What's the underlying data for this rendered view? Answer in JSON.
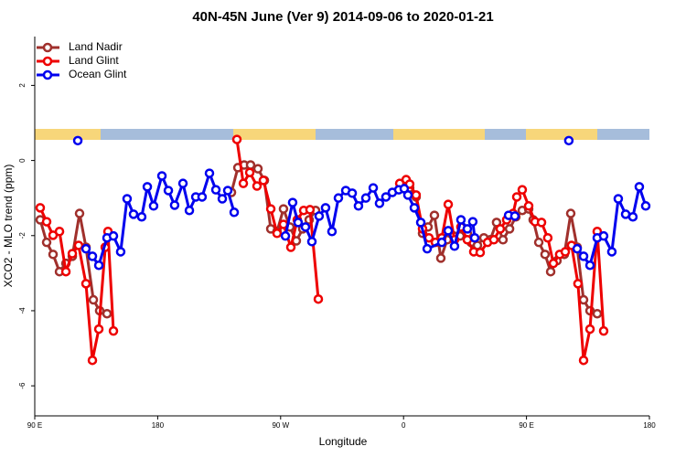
{
  "chart_data": {
    "type": "line",
    "title": "40N-45N June (Ver 9)   2014-09-06 to 2020-01-21",
    "xlabel": "Longitude",
    "ylabel": "XCO2 - MLO trend (ppm)",
    "xlim": [
      90,
      540
    ],
    "ylim": [
      -6.8,
      3.3
    ],
    "xticks": [
      {
        "value": 90,
        "label": "90 E"
      },
      180,
      {
        "value": 270,
        "label": "90 W"
      },
      {
        "value": 360,
        "label": "0"
      },
      {
        "value": 450,
        "label": "90 E"
      },
      {
        "value": 540,
        "label": "180"
      }
    ],
    "yticks": [
      -6,
      -4,
      -2,
      0,
      2
    ],
    "legend": "top-left",
    "series": [
      {
        "name": "Land Nadir",
        "color": "#a0302c",
        "x": [
          94,
          98.7,
          103.4,
          108.1,
          112.8,
          117.5,
          122.8,
          127.5,
          132.9,
          137.5,
          142.9,
          null,
          234,
          238.7,
          243.3,
          248,
          253.4,
          258.1,
          262.8,
          267.4,
          272.1,
          276.8,
          281.5,
          286.2,
          290.9,
          295.6,
          null,
          364.5,
          369.2,
          373.9,
          377.9,
          382.6,
          387.3,
          392,
          396.7,
          401.4,
          406.7,
          409.4,
          414.1,
          418.8,
          423.5,
          428.1,
          432.8,
          437.6,
          442.2,
          446.9,
          451.6,
          454.9,
          459,
          463.6,
          467.7,
          472.3,
          477.7,
          482.4,
          487.1,
          491.8,
          496.5,
          501.8
        ],
        "values": [
          -1.58,
          -2.18,
          -2.5,
          -2.96,
          -2.74,
          -2.55,
          -1.41,
          -2.31,
          -3.71,
          -4.0,
          -4.08,
          null,
          -0.85,
          -0.19,
          -0.12,
          -0.12,
          -0.22,
          -0.53,
          -1.82,
          -1.89,
          -1.29,
          -1.77,
          -2.14,
          -1.82,
          -1.58,
          -1.33,
          null,
          -0.73,
          -0.97,
          -1.94,
          -1.77,
          -1.46,
          -2.6,
          -2.11,
          -2.01,
          -2.01,
          -1.94,
          -2.18,
          -2.26,
          -2.06,
          -2.11,
          -1.65,
          -2.11,
          -1.82,
          -1.5,
          -1.33,
          -1.29,
          -1.58,
          -2.18,
          -2.5,
          -2.96,
          -2.67,
          -2.5,
          -1.41,
          -2.31,
          -3.71,
          -4.0,
          -4.08
        ]
      },
      {
        "name": "Land Glint",
        "color": "#ee0000",
        "x": [
          94,
          98.7,
          103.4,
          108.1,
          112.8,
          117.5,
          122.1,
          127.5,
          132.2,
          136.9,
          141.6,
          143.6,
          147.6,
          null,
          238,
          242.7,
          247.4,
          252.7,
          257.4,
          262.8,
          267.4,
          272.1,
          277.5,
          282.2,
          286.9,
          291.5,
          297.6,
          null,
          357.2,
          361.9,
          364.5,
          369.2,
          373.9,
          378.6,
          383.3,
          388,
          392.7,
          397.3,
          402,
          406.7,
          411.4,
          416.1,
          421.5,
          426.1,
          430.8,
          435.5,
          440.2,
          442.9,
          446.9,
          451.6,
          456.3,
          461,
          465.6,
          469.7,
          474.3,
          478.4,
          483,
          487.7,
          491.8,
          496.5,
          501.8,
          506.5
        ],
        "values": [
          -1.26,
          -1.63,
          -1.99,
          -1.89,
          -2.96,
          -2.48,
          -2.26,
          -3.28,
          -5.32,
          -4.49,
          -2.31,
          -1.89,
          -4.54,
          null,
          0.56,
          -0.61,
          -0.32,
          -0.68,
          -0.53,
          -1.29,
          -1.94,
          -1.7,
          -2.31,
          -1.58,
          -1.33,
          -1.31,
          -3.69,
          null,
          -0.61,
          -0.51,
          -0.63,
          -0.92,
          -1.82,
          -2.06,
          -2.18,
          -2.06,
          -1.17,
          -2.11,
          -1.77,
          -2.11,
          -2.43,
          -2.45,
          -2.18,
          -2.11,
          -1.82,
          -1.58,
          -1.41,
          -0.97,
          -0.78,
          -1.21,
          -1.63,
          -1.65,
          -2.06,
          -2.74,
          -2.5,
          -2.43,
          -2.26,
          -3.28,
          -5.32,
          -4.49,
          -1.89,
          -4.54
        ]
      },
      {
        "name": "Ocean Glint",
        "color": "#0000ee",
        "x": [
          121.5,
          null,
          127.5,
          132.2,
          136.9,
          142.9,
          147.6,
          152.9,
          157.6,
          162.3,
          168.3,
          172.4,
          177,
          183.1,
          187.8,
          192.4,
          198.5,
          203.2,
          207.9,
          212.5,
          217.9,
          222.6,
          227.3,
          231.3,
          236,
          null,
          273.5,
          278.8,
          282.8,
          288.2,
          292.9,
          298.2,
          302.9,
          307.6,
          312.3,
          317.7,
          322.4,
          327,
          332.4,
          337.8,
          342.4,
          347.1,
          351.8,
          356.5,
          360.5,
          363.2,
          367.9,
          372.6,
          377.3,
          388,
          392.7,
          397.3,
          402,
          406.7,
          410.7,
          412.1,
          null,
          436.9,
          441.5,
          null,
          481,
          null,
          487.1,
          491.8,
          496.5,
          501.8,
          506.5,
          512.5,
          517.2,
          522.6,
          527.9,
          532.6,
          537.3
        ],
        "values": [
          0.53,
          null,
          -2.35,
          -2.55,
          -2.79,
          -2.06,
          -2.01,
          -2.43,
          -1.02,
          -1.43,
          -1.5,
          -0.7,
          -1.21,
          -0.41,
          -0.8,
          -1.19,
          -0.61,
          -1.33,
          -0.97,
          -0.97,
          -0.34,
          -0.78,
          -1.02,
          -0.8,
          -1.38,
          null,
          -2.01,
          -1.12,
          -1.65,
          -1.77,
          -2.16,
          -1.48,
          -1.26,
          -1.89,
          -1.0,
          -0.8,
          -0.87,
          -1.21,
          -1.0,
          -0.73,
          -1.14,
          -0.97,
          -0.85,
          -0.78,
          -0.75,
          -0.92,
          -1.26,
          -1.65,
          -2.35,
          -2.18,
          -1.87,
          -2.28,
          -1.58,
          -1.82,
          -1.63,
          -2.06,
          null,
          -1.46,
          -1.48,
          null,
          0.53,
          null,
          -2.35,
          -2.55,
          -2.79,
          -2.06,
          -2.01,
          -2.43,
          -1.02,
          -1.43,
          -1.5,
          -0.7,
          -1.21
        ]
      }
    ]
  }
}
